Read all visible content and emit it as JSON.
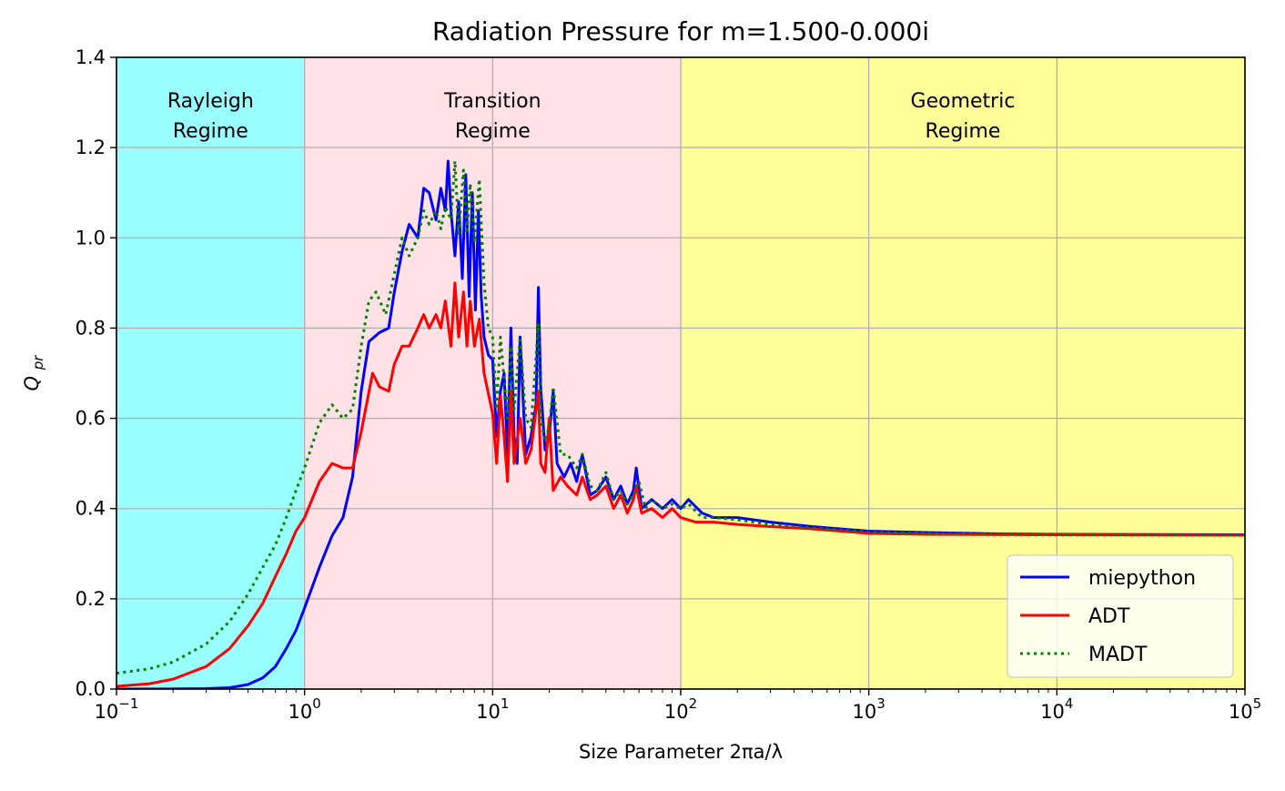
{
  "chart_data": {
    "type": "line",
    "title": "Radiation Pressure for m=1.500-0.000i",
    "xlabel": "Size Parameter 2πa/λ",
    "ylabel": "Q_pr",
    "ylabel_main": "Q",
    "ylabel_sub": "pr",
    "x_scale": "log",
    "xlim": [
      0.1,
      100000
    ],
    "ylim": [
      0.0,
      1.4
    ],
    "grid": true,
    "legend_position": "lower-right",
    "x_ticks": [
      {
        "value": 0.1,
        "base": "10",
        "exp": "−1"
      },
      {
        "value": 1,
        "base": "10",
        "exp": "0"
      },
      {
        "value": 10,
        "base": "10",
        "exp": "1"
      },
      {
        "value": 100,
        "base": "10",
        "exp": "2"
      },
      {
        "value": 1000,
        "base": "10",
        "exp": "3"
      },
      {
        "value": 10000,
        "base": "10",
        "exp": "4"
      },
      {
        "value": 100000,
        "base": "10",
        "exp": "5"
      }
    ],
    "y_ticks": [
      {
        "value": 0.0,
        "label": "0.0"
      },
      {
        "value": 0.2,
        "label": "0.2"
      },
      {
        "value": 0.4,
        "label": "0.4"
      },
      {
        "value": 0.6,
        "label": "0.6"
      },
      {
        "value": 0.8,
        "label": "0.8"
      },
      {
        "value": 1.0,
        "label": "1.0"
      },
      {
        "value": 1.2,
        "label": "1.2"
      },
      {
        "value": 1.4,
        "label": "1.4"
      }
    ],
    "regions": [
      {
        "name": "Rayleigh",
        "line1": "Rayleigh",
        "line2": "Regime",
        "x_range": [
          0.1,
          1
        ],
        "color": "#99ffff"
      },
      {
        "name": "Transition",
        "line1": "Transition",
        "line2": "Regime",
        "x_range": [
          1,
          100
        ],
        "color": "#ffe1e6"
      },
      {
        "name": "Geometric",
        "line1": "Geometric",
        "line2": "Regime",
        "x_range": [
          100,
          100000
        ],
        "color": "#ffff99"
      }
    ],
    "series": [
      {
        "name": "miepython",
        "color": "#0000ff",
        "style": "solid",
        "points": [
          [
            0.1,
            0.0001
          ],
          [
            0.2,
            0.0002
          ],
          [
            0.3,
            0.001
          ],
          [
            0.4,
            0.003
          ],
          [
            0.5,
            0.01
          ],
          [
            0.6,
            0.025
          ],
          [
            0.7,
            0.05
          ],
          [
            0.8,
            0.09
          ],
          [
            0.9,
            0.13
          ],
          [
            1.0,
            0.18
          ],
          [
            1.2,
            0.27
          ],
          [
            1.4,
            0.34
          ],
          [
            1.6,
            0.38
          ],
          [
            1.8,
            0.47
          ],
          [
            2.0,
            0.66
          ],
          [
            2.2,
            0.77
          ],
          [
            2.5,
            0.79
          ],
          [
            2.8,
            0.8
          ],
          [
            3.0,
            0.88
          ],
          [
            3.3,
            0.97
          ],
          [
            3.6,
            1.03
          ],
          [
            4.0,
            1.0
          ],
          [
            4.3,
            1.11
          ],
          [
            4.6,
            1.1
          ],
          [
            5.0,
            1.04
          ],
          [
            5.3,
            1.11
          ],
          [
            5.6,
            1.06
          ],
          [
            5.8,
            1.17
          ],
          [
            6.0,
            1.06
          ],
          [
            6.3,
            0.96
          ],
          [
            6.6,
            1.08
          ],
          [
            6.9,
            0.91
          ],
          [
            7.2,
            1.14
          ],
          [
            7.5,
            0.87
          ],
          [
            7.8,
            1.1
          ],
          [
            8.1,
            0.84
          ],
          [
            8.4,
            1.06
          ],
          [
            8.7,
            0.87
          ],
          [
            9.0,
            0.78
          ],
          [
            9.5,
            0.74
          ],
          [
            10.0,
            0.73
          ],
          [
            10.5,
            0.56
          ],
          [
            11.0,
            0.66
          ],
          [
            11.5,
            0.7
          ],
          [
            12.0,
            0.52
          ],
          [
            12.5,
            0.8
          ],
          [
            13.0,
            0.56
          ],
          [
            13.5,
            0.5
          ],
          [
            14.0,
            0.78
          ],
          [
            15.0,
            0.52
          ],
          [
            16.0,
            0.56
          ],
          [
            17.0,
            0.63
          ],
          [
            17.5,
            0.89
          ],
          [
            18.0,
            0.67
          ],
          [
            19.0,
            0.53
          ],
          [
            20.0,
            0.56
          ],
          [
            21.0,
            0.66
          ],
          [
            22.0,
            0.5
          ],
          [
            24.0,
            0.47
          ],
          [
            26.0,
            0.5
          ],
          [
            28.0,
            0.46
          ],
          [
            30.0,
            0.52
          ],
          [
            33.0,
            0.43
          ],
          [
            36.0,
            0.44
          ],
          [
            40.0,
            0.47
          ],
          [
            44.0,
            0.42
          ],
          [
            48.0,
            0.45
          ],
          [
            52.0,
            0.41
          ],
          [
            56.0,
            0.44
          ],
          [
            58.0,
            0.49
          ],
          [
            62.0,
            0.4
          ],
          [
            70.0,
            0.42
          ],
          [
            80.0,
            0.4
          ],
          [
            90.0,
            0.42
          ],
          [
            100.0,
            0.4
          ],
          [
            110.0,
            0.42
          ],
          [
            130.0,
            0.39
          ],
          [
            150.0,
            0.38
          ],
          [
            200.0,
            0.38
          ],
          [
            300.0,
            0.37
          ],
          [
            500.0,
            0.36
          ],
          [
            700.0,
            0.355
          ],
          [
            1000.0,
            0.35
          ],
          [
            2000.0,
            0.347
          ],
          [
            5000.0,
            0.344
          ],
          [
            10000.0,
            0.343
          ],
          [
            100000.0,
            0.342
          ]
        ]
      },
      {
        "name": "ADT",
        "color": "#ff0000",
        "style": "solid",
        "points": [
          [
            0.1,
            0.006
          ],
          [
            0.15,
            0.012
          ],
          [
            0.2,
            0.022
          ],
          [
            0.3,
            0.05
          ],
          [
            0.4,
            0.09
          ],
          [
            0.5,
            0.14
          ],
          [
            0.6,
            0.19
          ],
          [
            0.7,
            0.25
          ],
          [
            0.8,
            0.3
          ],
          [
            0.9,
            0.35
          ],
          [
            1.0,
            0.38
          ],
          [
            1.2,
            0.46
          ],
          [
            1.4,
            0.5
          ],
          [
            1.6,
            0.49
          ],
          [
            1.8,
            0.49
          ],
          [
            2.0,
            0.57
          ],
          [
            2.3,
            0.7
          ],
          [
            2.5,
            0.67
          ],
          [
            2.8,
            0.66
          ],
          [
            3.0,
            0.72
          ],
          [
            3.3,
            0.76
          ],
          [
            3.6,
            0.76
          ],
          [
            4.0,
            0.8
          ],
          [
            4.3,
            0.83
          ],
          [
            4.6,
            0.8
          ],
          [
            5.0,
            0.83
          ],
          [
            5.3,
            0.8
          ],
          [
            5.6,
            0.86
          ],
          [
            6.0,
            0.76
          ],
          [
            6.3,
            0.9
          ],
          [
            6.6,
            0.78
          ],
          [
            7.0,
            0.88
          ],
          [
            7.3,
            0.76
          ],
          [
            7.6,
            0.86
          ],
          [
            8.0,
            0.76
          ],
          [
            8.5,
            0.82
          ],
          [
            9.0,
            0.7
          ],
          [
            10.0,
            0.61
          ],
          [
            10.5,
            0.5
          ],
          [
            11.0,
            0.65
          ],
          [
            11.5,
            0.56
          ],
          [
            12.0,
            0.46
          ],
          [
            12.5,
            0.66
          ],
          [
            13.0,
            0.5
          ],
          [
            14.0,
            0.6
          ],
          [
            15.0,
            0.5
          ],
          [
            16.0,
            0.53
          ],
          [
            17.5,
            0.66
          ],
          [
            18.0,
            0.5
          ],
          [
            19.0,
            0.48
          ],
          [
            20.0,
            0.6
          ],
          [
            21.0,
            0.44
          ],
          [
            23.0,
            0.47
          ],
          [
            25.0,
            0.45
          ],
          [
            28.0,
            0.43
          ],
          [
            30.0,
            0.47
          ],
          [
            33.0,
            0.42
          ],
          [
            36.0,
            0.43
          ],
          [
            40.0,
            0.45
          ],
          [
            44.0,
            0.4
          ],
          [
            48.0,
            0.43
          ],
          [
            52.0,
            0.39
          ],
          [
            56.0,
            0.42
          ],
          [
            58.0,
            0.45
          ],
          [
            62.0,
            0.39
          ],
          [
            70.0,
            0.4
          ],
          [
            80.0,
            0.38
          ],
          [
            90.0,
            0.4
          ],
          [
            100.0,
            0.38
          ],
          [
            120.0,
            0.37
          ],
          [
            150.0,
            0.37
          ],
          [
            200.0,
            0.365
          ],
          [
            300.0,
            0.36
          ],
          [
            500.0,
            0.355
          ],
          [
            1000.0,
            0.345
          ],
          [
            2000.0,
            0.343
          ],
          [
            10000.0,
            0.342
          ],
          [
            100000.0,
            0.341
          ]
        ]
      },
      {
        "name": "MADT",
        "color": "#008000",
        "style": "dotted",
        "points": [
          [
            0.1,
            0.035
          ],
          [
            0.15,
            0.045
          ],
          [
            0.2,
            0.06
          ],
          [
            0.3,
            0.1
          ],
          [
            0.4,
            0.15
          ],
          [
            0.5,
            0.21
          ],
          [
            0.6,
            0.27
          ],
          [
            0.7,
            0.32
          ],
          [
            0.8,
            0.38
          ],
          [
            0.9,
            0.44
          ],
          [
            1.0,
            0.49
          ],
          [
            1.2,
            0.59
          ],
          [
            1.4,
            0.63
          ],
          [
            1.6,
            0.6
          ],
          [
            1.8,
            0.62
          ],
          [
            2.0,
            0.76
          ],
          [
            2.2,
            0.86
          ],
          [
            2.4,
            0.88
          ],
          [
            2.7,
            0.83
          ],
          [
            3.0,
            0.92
          ],
          [
            3.3,
            1.0
          ],
          [
            3.6,
            0.96
          ],
          [
            4.0,
            1.0
          ],
          [
            4.3,
            1.06
          ],
          [
            4.6,
            1.03
          ],
          [
            5.0,
            1.06
          ],
          [
            5.3,
            1.02
          ],
          [
            5.6,
            1.07
          ],
          [
            6.0,
            1.04
          ],
          [
            6.3,
            1.17
          ],
          [
            6.6,
            1.01
          ],
          [
            7.0,
            1.15
          ],
          [
            7.3,
            1.01
          ],
          [
            7.6,
            1.12
          ],
          [
            8.0,
            0.99
          ],
          [
            8.5,
            1.13
          ],
          [
            9.0,
            0.9
          ],
          [
            9.5,
            0.8
          ],
          [
            10.0,
            0.78
          ],
          [
            10.5,
            0.62
          ],
          [
            11.0,
            0.78
          ],
          [
            12.0,
            0.6
          ],
          [
            12.5,
            0.76
          ],
          [
            13.0,
            0.62
          ],
          [
            14.0,
            0.78
          ],
          [
            15.0,
            0.6
          ],
          [
            16.0,
            0.58
          ],
          [
            17.5,
            0.81
          ],
          [
            18.0,
            0.6
          ],
          [
            19.0,
            0.55
          ],
          [
            20.0,
            0.58
          ],
          [
            21.0,
            0.67
          ],
          [
            23.0,
            0.52
          ],
          [
            25.0,
            0.52
          ],
          [
            28.0,
            0.49
          ],
          [
            30.0,
            0.52
          ],
          [
            33.0,
            0.45
          ],
          [
            36.0,
            0.44
          ],
          [
            40.0,
            0.48
          ],
          [
            44.0,
            0.42
          ],
          [
            48.0,
            0.44
          ],
          [
            52.0,
            0.41
          ],
          [
            56.0,
            0.43
          ],
          [
            60.0,
            0.46
          ],
          [
            65.0,
            0.4
          ],
          [
            70.0,
            0.42
          ],
          [
            80.0,
            0.4
          ],
          [
            90.0,
            0.41
          ],
          [
            100.0,
            0.4
          ],
          [
            110.0,
            0.41
          ],
          [
            130.0,
            0.38
          ],
          [
            150.0,
            0.38
          ],
          [
            200.0,
            0.375
          ],
          [
            300.0,
            0.365
          ],
          [
            500.0,
            0.357
          ],
          [
            1000.0,
            0.348
          ],
          [
            2000.0,
            0.345
          ],
          [
            10000.0,
            0.342
          ],
          [
            100000.0,
            0.341
          ]
        ]
      }
    ]
  }
}
